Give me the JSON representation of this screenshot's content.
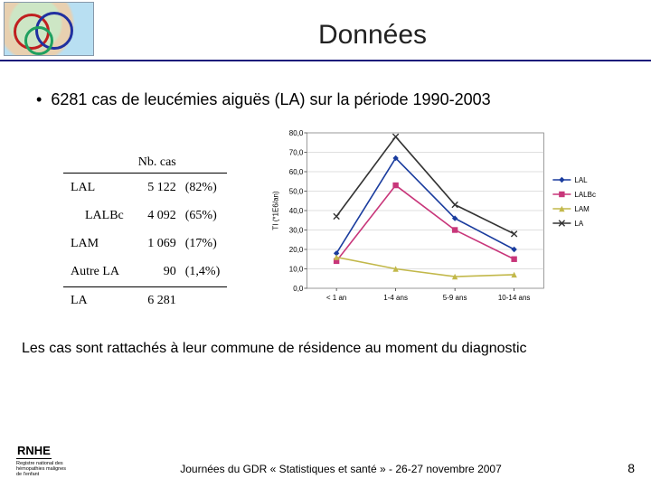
{
  "title": "Données",
  "bullet": "6281 cas de leucémies aiguës (LA) sur la période 1990-2003",
  "table": {
    "header": [
      "",
      "Nb. cas",
      ""
    ],
    "rows": [
      {
        "label": "LAL",
        "indent": false,
        "n": "5 122",
        "pct": "(82%)"
      },
      {
        "label": "LALBc",
        "indent": true,
        "n": "4 092",
        "pct": "(65%)"
      },
      {
        "label": "LAM",
        "indent": false,
        "n": "1 069",
        "pct": "(17%)"
      },
      {
        "label": "Autre LA",
        "indent": false,
        "n": "90",
        "pct": "(1,4%)"
      },
      {
        "label": "LA",
        "indent": false,
        "n": "6 281",
        "pct": "",
        "toprule": true
      }
    ]
  },
  "chart": {
    "type": "line",
    "categories": [
      "< 1 an",
      "1-4 ans",
      "5-9 ans",
      "10-14 ans"
    ],
    "ylabel": "TI (*1E6/an)",
    "ylim": [
      0,
      80
    ],
    "ytick_step": 10,
    "ylabels": [
      "0,0",
      "10,0",
      "20,0",
      "30,0",
      "40,0",
      "50,0",
      "60,0",
      "70,0",
      "80,0"
    ],
    "grid_color": "#c0c0c0",
    "background_color": "#ffffff",
    "axis_font_size": 8,
    "label_font_size": 8,
    "series": [
      {
        "name": "LAL",
        "color": "#1a3c9e",
        "marker": "diamond",
        "values": [
          18,
          67,
          36,
          20
        ]
      },
      {
        "name": "LALBc",
        "color": "#c8367a",
        "marker": "square",
        "values": [
          14,
          53,
          30,
          15
        ]
      },
      {
        "name": "LAM",
        "color": "#c2b84a",
        "marker": "triangle",
        "values": [
          16,
          10,
          6,
          7
        ]
      },
      {
        "name": "LA",
        "color": "#333333",
        "marker": "x",
        "values": [
          37,
          78,
          43,
          28
        ]
      }
    ]
  },
  "note": "Les cas sont rattachés à leur commune de résidence au moment du diagnostic",
  "footer": {
    "logo_mark": "RNHE",
    "logo_sub": "Registre national des hémopathies malignes de l'enfant",
    "center": "Journées du GDR « Statistiques et santé » - 26-27 novembre 2007",
    "page": "8"
  }
}
